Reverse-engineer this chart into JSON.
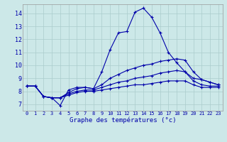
{
  "title": "Graphe des températures (°c)",
  "background_color": "#cce8e8",
  "grid_color": "#aacccc",
  "line_color": "#0000aa",
  "ylim": [
    6.5,
    14.7
  ],
  "xlim": [
    -0.5,
    23.5
  ],
  "yticks": [
    7,
    8,
    9,
    10,
    11,
    12,
    13,
    14
  ],
  "xticks": [
    0,
    1,
    2,
    3,
    4,
    5,
    6,
    7,
    8,
    9,
    10,
    11,
    12,
    13,
    14,
    15,
    16,
    17,
    18,
    19,
    20,
    21,
    22,
    23
  ],
  "series": [
    [
      8.4,
      8.4,
      7.6,
      7.5,
      6.9,
      8.1,
      8.3,
      8.3,
      8.2,
      9.5,
      11.2,
      12.5,
      12.6,
      14.1,
      14.4,
      13.7,
      12.5,
      11.0,
      10.2,
      9.5,
      9.0,
      8.9,
      8.7,
      8.5
    ],
    [
      8.4,
      8.4,
      7.6,
      7.5,
      7.5,
      7.9,
      8.2,
      8.3,
      8.2,
      8.5,
      9.0,
      9.3,
      9.6,
      9.8,
      10.0,
      10.1,
      10.3,
      10.4,
      10.5,
      10.4,
      9.5,
      8.9,
      8.7,
      8.5
    ],
    [
      8.4,
      8.4,
      7.6,
      7.5,
      7.5,
      7.8,
      8.0,
      8.1,
      8.1,
      8.3,
      8.5,
      8.7,
      8.8,
      9.0,
      9.1,
      9.2,
      9.4,
      9.5,
      9.6,
      9.5,
      8.8,
      8.5,
      8.4,
      8.4
    ],
    [
      8.4,
      8.4,
      7.6,
      7.5,
      7.5,
      7.7,
      7.9,
      8.0,
      8.0,
      8.1,
      8.2,
      8.3,
      8.4,
      8.5,
      8.5,
      8.6,
      8.7,
      8.8,
      8.8,
      8.8,
      8.5,
      8.3,
      8.3,
      8.3
    ]
  ]
}
